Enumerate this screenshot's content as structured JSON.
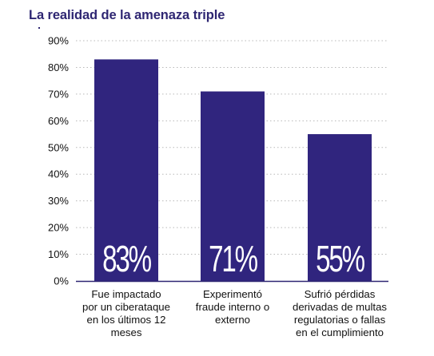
{
  "header": {
    "title": "La realidad de la amenaza triple"
  },
  "chart_data": {
    "type": "bar",
    "title": "La realidad de la amenaza triple",
    "categories": [
      "Fue impactado por un ciberataque en los últimos 12 meses",
      "Experimentó fraude interno o externo",
      "Sufrió pérdidas derivadas de multas regulatorias o fallas en el cumplimiento"
    ],
    "category_lines": [
      [
        "Fue impactado",
        "por un ciberataque",
        "en los últimos 12",
        "meses"
      ],
      [
        "Experimentó",
        "fraude interno o",
        "externo"
      ],
      [
        "Sufrió pérdidas",
        "derivadas de multas",
        "regulatorias o fallas",
        "en el cumplimiento"
      ]
    ],
    "values": [
      83,
      71,
      55
    ],
    "data_labels": [
      "83%",
      "71%",
      "55%"
    ],
    "ylim": [
      0,
      90
    ],
    "yticks": [
      0,
      10,
      20,
      30,
      40,
      50,
      60,
      70,
      80,
      90
    ],
    "ytick_labels": [
      "0%",
      "10%",
      "20%",
      "30%",
      "40%",
      "50%",
      "60%",
      "70%",
      "80%",
      "90%"
    ],
    "grid": true,
    "colors": {
      "bar": "#30257e",
      "grid": "#b8b8b8",
      "axis": "#2e2672",
      "data_label": "#ffffff"
    }
  }
}
